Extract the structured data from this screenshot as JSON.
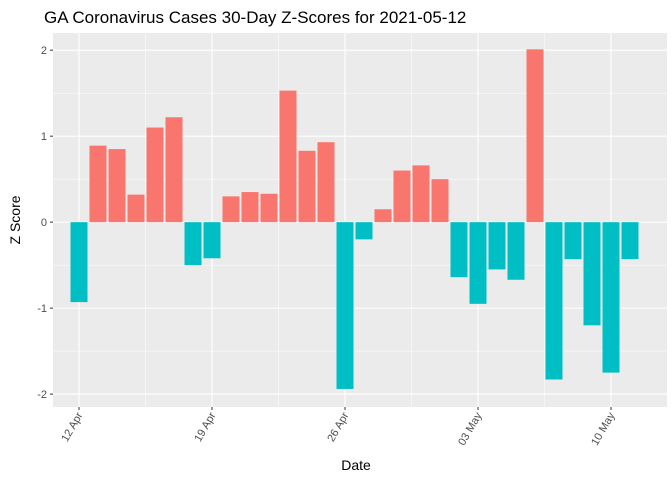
{
  "chart_data": {
    "type": "bar",
    "title": "GA Coronavirus Cases 30-Day Z-Scores for 2021-05-12",
    "xlabel": "Date",
    "ylabel": "Z Score",
    "ylim": [
      -2.15,
      2.2
    ],
    "yticks": [
      -2,
      -1,
      0,
      1,
      2
    ],
    "ytick_labels": [
      "-2",
      "-1",
      "0",
      "1",
      "2"
    ],
    "x_dates": [
      "2021-04-12",
      "2021-04-13",
      "2021-04-14",
      "2021-04-15",
      "2021-04-16",
      "2021-04-17",
      "2021-04-18",
      "2021-04-19",
      "2021-04-20",
      "2021-04-21",
      "2021-04-22",
      "2021-04-23",
      "2021-04-24",
      "2021-04-25",
      "2021-04-26",
      "2021-04-27",
      "2021-04-28",
      "2021-04-29",
      "2021-04-30",
      "2021-05-01",
      "2021-05-02",
      "2021-05-03",
      "2021-05-04",
      "2021-05-05",
      "2021-05-06",
      "2021-05-07",
      "2021-05-08",
      "2021-05-09",
      "2021-05-10",
      "2021-05-11"
    ],
    "values": [
      -0.93,
      0.89,
      0.85,
      0.32,
      1.1,
      1.22,
      -0.5,
      -0.42,
      0.3,
      0.35,
      0.33,
      1.53,
      0.83,
      0.93,
      -1.94,
      -0.2,
      0.15,
      0.6,
      0.66,
      0.5,
      -0.64,
      -0.95,
      -0.55,
      -0.67,
      2.01,
      -1.83,
      -0.43,
      -1.2,
      -1.75,
      -0.43
    ],
    "xticks": [
      {
        "index": 0,
        "label": "12 Apr"
      },
      {
        "index": 7,
        "label": "19 Apr"
      },
      {
        "index": 14,
        "label": "26 Apr"
      },
      {
        "index": 21,
        "label": "03 May"
      },
      {
        "index": 28,
        "label": "10 May"
      }
    ],
    "colors": {
      "positive": "#F8766D",
      "negative": "#00BFC4",
      "panel": "#EBEBEB",
      "grid_major": "#FFFFFF",
      "tick": "#333333"
    },
    "grid": true
  }
}
